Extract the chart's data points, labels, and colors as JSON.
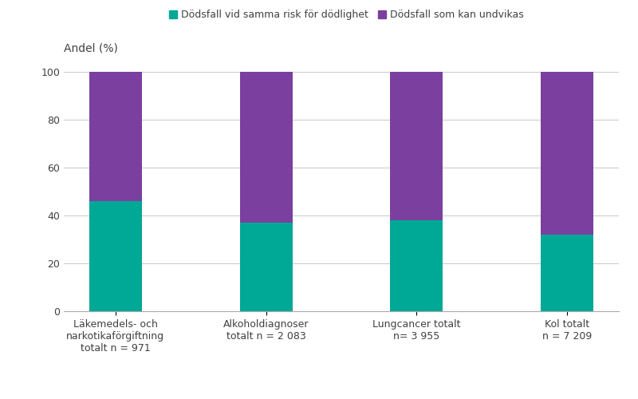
{
  "categories": [
    "Läkemedels- och\nnarkotikaförgiftning\ntotalt n = 971",
    "Alkoholdiagnoser\ntotalt n = 2 083",
    "Lungcancer totalt\nn= 3 955",
    "Kol totalt\nn = 7 209"
  ],
  "green_values": [
    46,
    37,
    38,
    32
  ],
  "purple_values": [
    54,
    63,
    62,
    68
  ],
  "green_color": "#00a896",
  "purple_color": "#7b3fa0",
  "ylabel_text": "Andel (%)",
  "legend_green": "Dödsfall vid samma risk för dödlighet",
  "legend_purple": "Dödsfall som kan undvikas",
  "ylim": [
    0,
    100
  ],
  "yticks": [
    0,
    20,
    40,
    60,
    80,
    100
  ],
  "bar_width": 0.35,
  "background_color": "#ffffff",
  "grid_color": "#cccccc",
  "text_color": "#404040"
}
